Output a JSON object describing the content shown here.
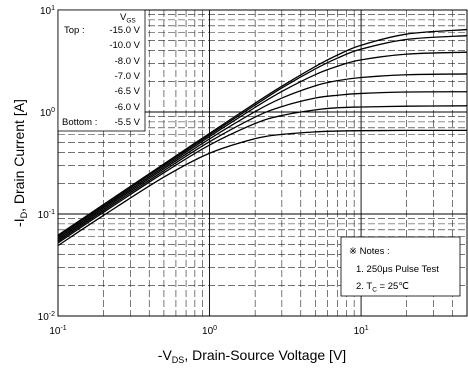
{
  "chart_data": {
    "type": "line",
    "x_scale": "log",
    "y_scale": "log",
    "xlim": [
      0.1,
      50
    ],
    "ylim": [
      0.01,
      10
    ],
    "grid": true,
    "line_color": "#000000",
    "x_ticks": [
      {
        "value": 0.1,
        "base": "10",
        "exp": "-1"
      },
      {
        "value": 1,
        "base": "10",
        "exp": "0"
      },
      {
        "value": 10,
        "base": "10",
        "exp": "1"
      }
    ],
    "y_ticks": [
      {
        "value": 10,
        "base": "10",
        "exp": "1"
      },
      {
        "value": 1,
        "base": "10",
        "exp": "0"
      },
      {
        "value": 0.1,
        "base": "10",
        "exp": "-1"
      },
      {
        "value": 0.01,
        "base": "10",
        "exp": "-2"
      }
    ],
    "xlabel": {
      "prefix": "-V",
      "sub": "DS",
      "rest": ", Drain-Source Voltage [V]"
    },
    "ylabel": {
      "prefix": "-I",
      "sub": "D",
      "rest": ", Drain Current [A]"
    },
    "legend": {
      "position": "top-left",
      "title": "V",
      "title_sub": "GS",
      "top_label": "Top :",
      "bottom_label": "Bottom :"
    },
    "x": [
      0.1,
      0.2,
      0.5,
      1,
      2,
      3,
      5,
      7,
      10,
      20,
      50
    ],
    "series": [
      {
        "name": "-15.0 V",
        "values": [
          0.062,
          0.124,
          0.31,
          0.617,
          1.22,
          1.79,
          2.8,
          3.62,
          4.51,
          5.81,
          6.43
        ]
      },
      {
        "name": "-10.0 V",
        "values": [
          0.06,
          0.12,
          0.3,
          0.597,
          1.17,
          1.72,
          2.65,
          3.38,
          4.13,
          5.15,
          5.6
        ]
      },
      {
        "name": "-8.0 V",
        "values": [
          0.058,
          0.116,
          0.289,
          0.574,
          1.11,
          1.59,
          2.33,
          2.81,
          3.24,
          3.69,
          3.86
        ]
      },
      {
        "name": "-7.0 V",
        "values": [
          0.056,
          0.112,
          0.278,
          0.545,
          1.01,
          1.37,
          1.81,
          2.03,
          2.18,
          2.32,
          2.36
        ]
      },
      {
        "name": "-6.5 V",
        "values": [
          0.054,
          0.108,
          0.266,
          0.511,
          0.892,
          1.13,
          1.37,
          1.46,
          1.52,
          1.57,
          1.58
        ]
      },
      {
        "name": "-6.0 V",
        "values": [
          0.052,
          0.104,
          0.254,
          0.474,
          0.771,
          0.925,
          1.05,
          1.1,
          1.12,
          1.14,
          1.15
        ]
      },
      {
        "name": "-5.5 V",
        "values": [
          0.049,
          0.097,
          0.23,
          0.394,
          0.548,
          0.603,
          0.639,
          0.65,
          0.656,
          0.66,
          0.661
        ]
      }
    ],
    "notes": {
      "title": "※ Notes :",
      "item1": "1. 250μs Pulse Test",
      "item2": {
        "prefix": "2. T",
        "sub": "C",
        "rest": " = 25℃"
      }
    }
  }
}
